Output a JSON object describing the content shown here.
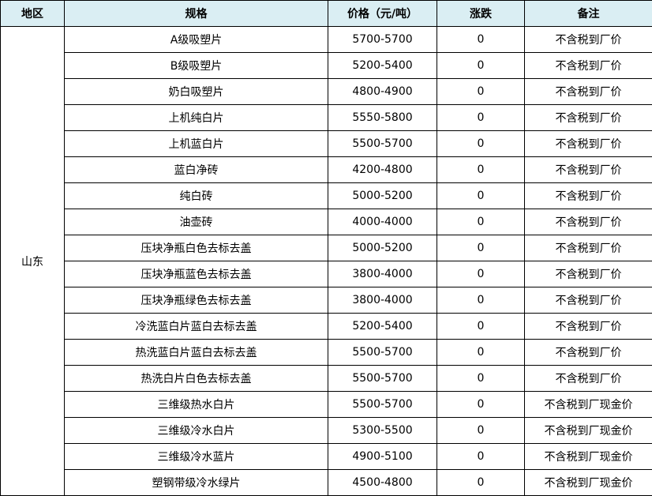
{
  "header": {
    "region": "地区",
    "spec": "规格",
    "price": "价格（元/吨）",
    "change": "涨跌",
    "note": "备注"
  },
  "header_bg": "#daeef3",
  "region": "山东",
  "rows": [
    {
      "spec": "A级吸塑片",
      "price": "5700-5700",
      "change": "0",
      "note": "不含税到厂价"
    },
    {
      "spec": "B级吸塑片",
      "price": "5200-5400",
      "change": "0",
      "note": "不含税到厂价"
    },
    {
      "spec": "奶白吸塑片",
      "price": "4800-4900",
      "change": "0",
      "note": "不含税到厂价"
    },
    {
      "spec": "上机纯白片",
      "price": "5550-5800",
      "change": "0",
      "note": "不含税到厂价"
    },
    {
      "spec": "上机蓝白片",
      "price": "5500-5700",
      "change": "0",
      "note": "不含税到厂价"
    },
    {
      "spec": "蓝白净砖",
      "price": "4200-4800",
      "change": "0",
      "note": "不含税到厂价"
    },
    {
      "spec": "纯白砖",
      "price": "5000-5200",
      "change": "0",
      "note": "不含税到厂价"
    },
    {
      "spec": "油壶砖",
      "price": "4000-4000",
      "change": "0",
      "note": "不含税到厂价"
    },
    {
      "spec": "压块净瓶白色去标去盖",
      "price": "5000-5200",
      "change": "0",
      "note": "不含税到厂价"
    },
    {
      "spec": "压块净瓶蓝色去标去盖",
      "price": "3800-4000",
      "change": "0",
      "note": "不含税到厂价"
    },
    {
      "spec": "压块净瓶绿色去标去盖",
      "price": "3800-4000",
      "change": "0",
      "note": "不含税到厂价"
    },
    {
      "spec": "冷洗蓝白片蓝白去标去盖",
      "price": "5200-5400",
      "change": "0",
      "note": "不含税到厂价"
    },
    {
      "spec": "热洗蓝白片蓝白去标去盖",
      "price": "5500-5700",
      "change": "0",
      "note": "不含税到厂价"
    },
    {
      "spec": "热洗白片白色去标去盖",
      "price": "5500-5700",
      "change": "0",
      "note": "不含税到厂价"
    },
    {
      "spec": "三维级热水白片",
      "price": "5500-5700",
      "change": "0",
      "note": "不含税到厂现金价"
    },
    {
      "spec": "三维级冷水白片",
      "price": "5300-5500",
      "change": "0",
      "note": "不含税到厂现金价"
    },
    {
      "spec": "三维级冷水蓝片",
      "price": "4900-5100",
      "change": "0",
      "note": "不含税到厂现金价"
    },
    {
      "spec": "塑钢带级冷水绿片",
      "price": "4500-4800",
      "change": "0",
      "note": "不含税到厂现金价"
    }
  ]
}
